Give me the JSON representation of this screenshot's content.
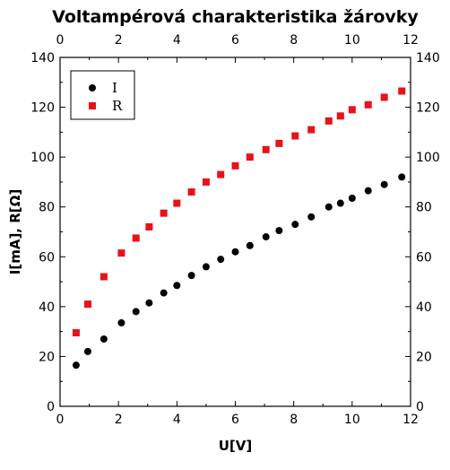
{
  "chart_data": {
    "type": "scatter",
    "title": "Voltampérová charakteristika žárovky",
    "xlabel": "U[V]",
    "ylabel": "I[mA], R[Ω]",
    "xlim": [
      0,
      12
    ],
    "ylim": [
      0,
      140
    ],
    "x_ticks": [
      0,
      2,
      4,
      6,
      8,
      10,
      12
    ],
    "y_ticks": [
      0,
      20,
      40,
      60,
      80,
      100,
      120,
      140
    ],
    "grid": false,
    "legend_position": "top-left",
    "series": [
      {
        "name": "I",
        "color": "#000000",
        "marker": "circle",
        "x": [
          0.55,
          0.95,
          1.5,
          2.1,
          2.6,
          3.05,
          3.55,
          4.0,
          4.5,
          5.0,
          5.5,
          6.0,
          6.5,
          7.05,
          7.5,
          8.05,
          8.6,
          9.2,
          9.6,
          10.0,
          10.55,
          11.1,
          11.7
        ],
        "y": [
          16.5,
          22,
          27,
          33.5,
          38,
          41.5,
          45.5,
          48.5,
          52.5,
          56,
          59,
          62,
          64.5,
          68,
          70.5,
          73,
          76,
          80,
          81.5,
          83.5,
          86.5,
          89,
          92
        ]
      },
      {
        "name": "R",
        "color": "#e8121a",
        "marker": "square",
        "x": [
          0.55,
          0.95,
          1.5,
          2.1,
          2.6,
          3.05,
          3.55,
          4.0,
          4.5,
          5.0,
          5.5,
          6.0,
          6.5,
          7.05,
          7.5,
          8.05,
          8.6,
          9.2,
          9.6,
          10.0,
          10.55,
          11.1,
          11.7
        ],
        "y": [
          29.5,
          41,
          52,
          61.5,
          67.5,
          72,
          77.5,
          81.5,
          86,
          90,
          93,
          96.5,
          100,
          103,
          105.5,
          108.5,
          111,
          114.5,
          116.5,
          119,
          121,
          124,
          126.5
        ]
      }
    ]
  }
}
